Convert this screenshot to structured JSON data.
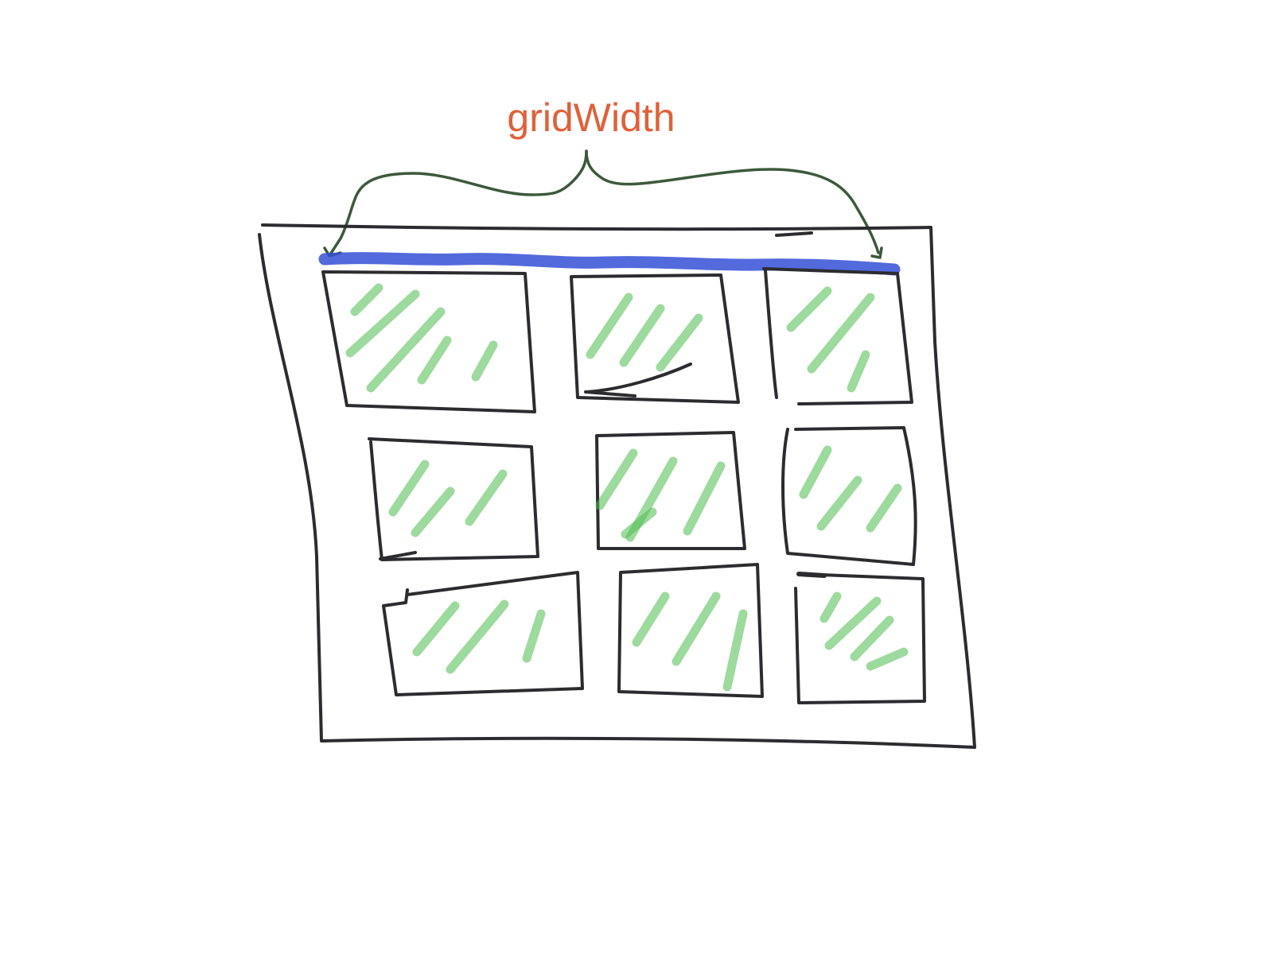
{
  "diagram": {
    "label": "gridWidth",
    "colors": {
      "label": "#e0603a",
      "highlight": "#3550d6",
      "hatch": "#4cbb4c",
      "ink": "#2c2c30",
      "brace": "#3b5a3a"
    },
    "grid": {
      "rows": 3,
      "columns": 3
    }
  }
}
